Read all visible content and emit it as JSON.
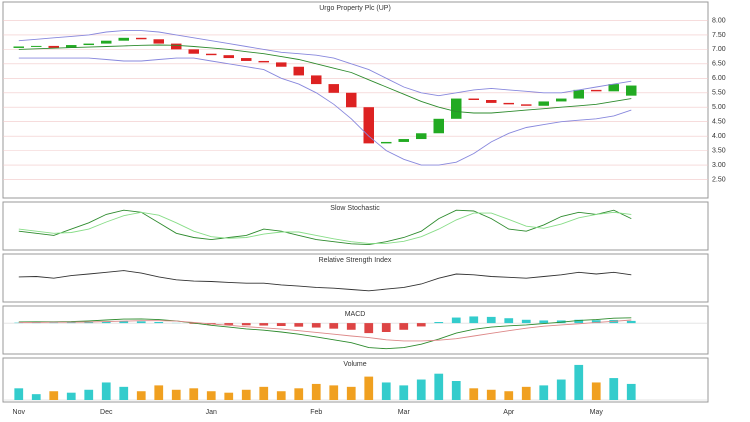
{
  "chart_data": [
    {
      "type": "candlestick",
      "title": "Urgo Property Plc (UP)",
      "open": [
        7.05,
        7.1,
        7.12,
        7.05,
        7.15,
        7.2,
        7.3,
        7.4,
        7.35,
        7.2,
        7.0,
        6.85,
        6.8,
        6.7,
        6.6,
        6.55,
        6.4,
        6.1,
        5.8,
        5.5,
        5.0,
        3.75,
        3.8,
        3.9,
        4.1,
        4.6,
        5.3,
        5.25,
        5.15,
        5.1,
        5.05,
        5.2,
        5.3,
        5.6,
        5.55,
        5.4
      ],
      "close": [
        7.1,
        7.12,
        7.05,
        7.15,
        7.2,
        7.3,
        7.4,
        7.35,
        7.2,
        7.0,
        6.85,
        6.8,
        6.7,
        6.6,
        6.55,
        6.4,
        6.1,
        5.8,
        5.5,
        5.0,
        3.75,
        3.8,
        3.9,
        4.1,
        4.6,
        5.3,
        5.25,
        5.15,
        5.1,
        5.05,
        5.2,
        5.3,
        5.6,
        5.55,
        5.8,
        5.75
      ],
      "up_color": "#22aa22",
      "down_color": "#dd2222",
      "series": [
        {
          "color": "#2e8b2e",
          "values": [
            7.0,
            7.02,
            7.04,
            7.06,
            7.08,
            7.1,
            7.12,
            7.14,
            7.15,
            7.14,
            7.1,
            7.05,
            7.0,
            6.92,
            6.85,
            6.75,
            6.65,
            6.5,
            6.35,
            6.2,
            5.95,
            5.7,
            5.45,
            5.2,
            5.0,
            4.85,
            4.8,
            4.8,
            4.85,
            4.9,
            4.95,
            5.0,
            5.05,
            5.1,
            5.2,
            5.3
          ]
        },
        {
          "color": "#8888dd",
          "values": [
            7.3,
            7.35,
            7.4,
            7.45,
            7.5,
            7.6,
            7.65,
            7.65,
            7.6,
            7.5,
            7.4,
            7.3,
            7.2,
            7.1,
            7.0,
            6.9,
            6.85,
            6.8,
            6.7,
            6.5,
            6.3,
            6.0,
            5.7,
            5.5,
            5.4,
            5.5,
            5.6,
            5.65,
            5.6,
            5.55,
            5.5,
            5.5,
            5.6,
            5.7,
            5.8,
            5.9
          ]
        },
        {
          "color": "#8888dd",
          "values": [
            6.7,
            6.7,
            6.7,
            6.7,
            6.7,
            6.65,
            6.6,
            6.6,
            6.65,
            6.7,
            6.7,
            6.6,
            6.5,
            6.4,
            6.3,
            6.0,
            5.8,
            5.5,
            5.1,
            4.6,
            4.0,
            3.5,
            3.2,
            3.0,
            3.0,
            3.1,
            3.4,
            3.8,
            4.1,
            4.3,
            4.4,
            4.5,
            4.55,
            4.6,
            4.7,
            4.9
          ]
        }
      ],
      "ylim": [
        2.0,
        8.5
      ],
      "grid": true,
      "yticks": [
        {
          "value": 2.5,
          "label": "2.50"
        },
        {
          "value": 3.0,
          "label": "3.00"
        },
        {
          "value": 3.5,
          "label": "3.50"
        },
        {
          "value": 4.0,
          "label": "4.00"
        },
        {
          "value": 4.5,
          "label": "4.50"
        },
        {
          "value": 5.0,
          "label": "5.00"
        },
        {
          "value": 5.5,
          "label": "5.50"
        },
        {
          "value": 6.0,
          "label": "6.00"
        },
        {
          "value": 6.5,
          "label": "6.50"
        },
        {
          "value": 7.0,
          "label": "7.00"
        },
        {
          "value": 7.5,
          "label": "7.50"
        },
        {
          "value": 8.0,
          "label": "8.00"
        }
      ]
    },
    {
      "type": "line",
      "title": "Slow Stochastic",
      "ylim": [
        0,
        100
      ],
      "series": [
        {
          "color": "#2e8b2e",
          "values": [
            40,
            35,
            30,
            45,
            60,
            80,
            90,
            85,
            60,
            35,
            25,
            20,
            25,
            30,
            45,
            40,
            30,
            20,
            15,
            10,
            8,
            15,
            25,
            40,
            70,
            90,
            88,
            70,
            45,
            40,
            55,
            75,
            85,
            80,
            90,
            70
          ]
        },
        {
          "color": "#88dd88",
          "values": [
            45,
            40,
            35,
            37,
            45,
            62,
            77,
            85,
            78,
            60,
            40,
            27,
            23,
            25,
            33,
            38,
            38,
            30,
            22,
            15,
            11,
            11,
            16,
            27,
            45,
            67,
            83,
            83,
            68,
            52,
            47,
            57,
            72,
            80,
            85,
            80
          ]
        }
      ]
    },
    {
      "type": "line",
      "title": "Relative Strength Index",
      "ylim": [
        0,
        100
      ],
      "series": [
        {
          "color": "#333333",
          "values": [
            55,
            56,
            52,
            58,
            62,
            66,
            70,
            64,
            55,
            48,
            45,
            44,
            42,
            40,
            40,
            36,
            33,
            30,
            28,
            25,
            22,
            26,
            30,
            38,
            52,
            62,
            60,
            56,
            54,
            52,
            56,
            60,
            66,
            62,
            66,
            60
          ]
        }
      ]
    },
    {
      "type": "bar",
      "title": "MACD",
      "ylim": [
        -1.3,
        0.5
      ],
      "color": "#33cccc",
      "neg_color": "#dd4444",
      "values": [
        0.02,
        0.03,
        0.02,
        0.03,
        0.05,
        0.07,
        0.09,
        0.08,
        0.05,
        0.01,
        -0.03,
        -0.06,
        -0.08,
        -0.1,
        -0.11,
        -0.13,
        -0.16,
        -0.2,
        -0.25,
        -0.3,
        -0.45,
        -0.4,
        -0.3,
        -0.15,
        0.05,
        0.25,
        0.3,
        0.28,
        0.22,
        0.15,
        0.12,
        0.12,
        0.15,
        0.13,
        0.14,
        0.1
      ],
      "series": [
        {
          "color": "#2e8b2e",
          "values": [
            0.05,
            0.06,
            0.06,
            0.07,
            0.1,
            0.14,
            0.18,
            0.19,
            0.16,
            0.1,
            0.0,
            -0.1,
            -0.18,
            -0.26,
            -0.32,
            -0.4,
            -0.5,
            -0.62,
            -0.75,
            -0.88,
            -1.1,
            -1.15,
            -1.1,
            -0.95,
            -0.72,
            -0.45,
            -0.28,
            -0.18,
            -0.12,
            -0.08,
            -0.02,
            0.04,
            0.12,
            0.16,
            0.22,
            0.24
          ]
        },
        {
          "color": "#dd8888",
          "values": [
            0.03,
            0.03,
            0.04,
            0.04,
            0.05,
            0.07,
            0.09,
            0.11,
            0.11,
            0.09,
            0.03,
            -0.04,
            -0.1,
            -0.16,
            -0.21,
            -0.27,
            -0.34,
            -0.42,
            -0.5,
            -0.58,
            -0.65,
            -0.75,
            -0.8,
            -0.8,
            -0.77,
            -0.7,
            -0.58,
            -0.46,
            -0.34,
            -0.23,
            -0.14,
            -0.08,
            -0.03,
            0.03,
            0.08,
            0.14
          ]
        }
      ]
    },
    {
      "type": "bar",
      "title": "Volume",
      "ylim": [
        0,
        130
      ],
      "color": "#33cccc",
      "neg_color": "#f0a020",
      "values": [
        40,
        20,
        30,
        25,
        35,
        60,
        45,
        30,
        50,
        35,
        40,
        30,
        25,
        35,
        45,
        30,
        40,
        55,
        50,
        45,
        80,
        60,
        50,
        70,
        90,
        65,
        40,
        35,
        30,
        45,
        50,
        70,
        120,
        60,
        75,
        55
      ],
      "categories": [
        "Nov",
        null,
        null,
        null,
        null,
        "Dec",
        null,
        null,
        null,
        null,
        null,
        "Jan",
        null,
        null,
        null,
        null,
        null,
        "Feb",
        null,
        null,
        null,
        null,
        "Mar",
        null,
        null,
        null,
        null,
        null,
        "Apr",
        null,
        null,
        null,
        null,
        "May",
        null,
        null
      ]
    }
  ]
}
